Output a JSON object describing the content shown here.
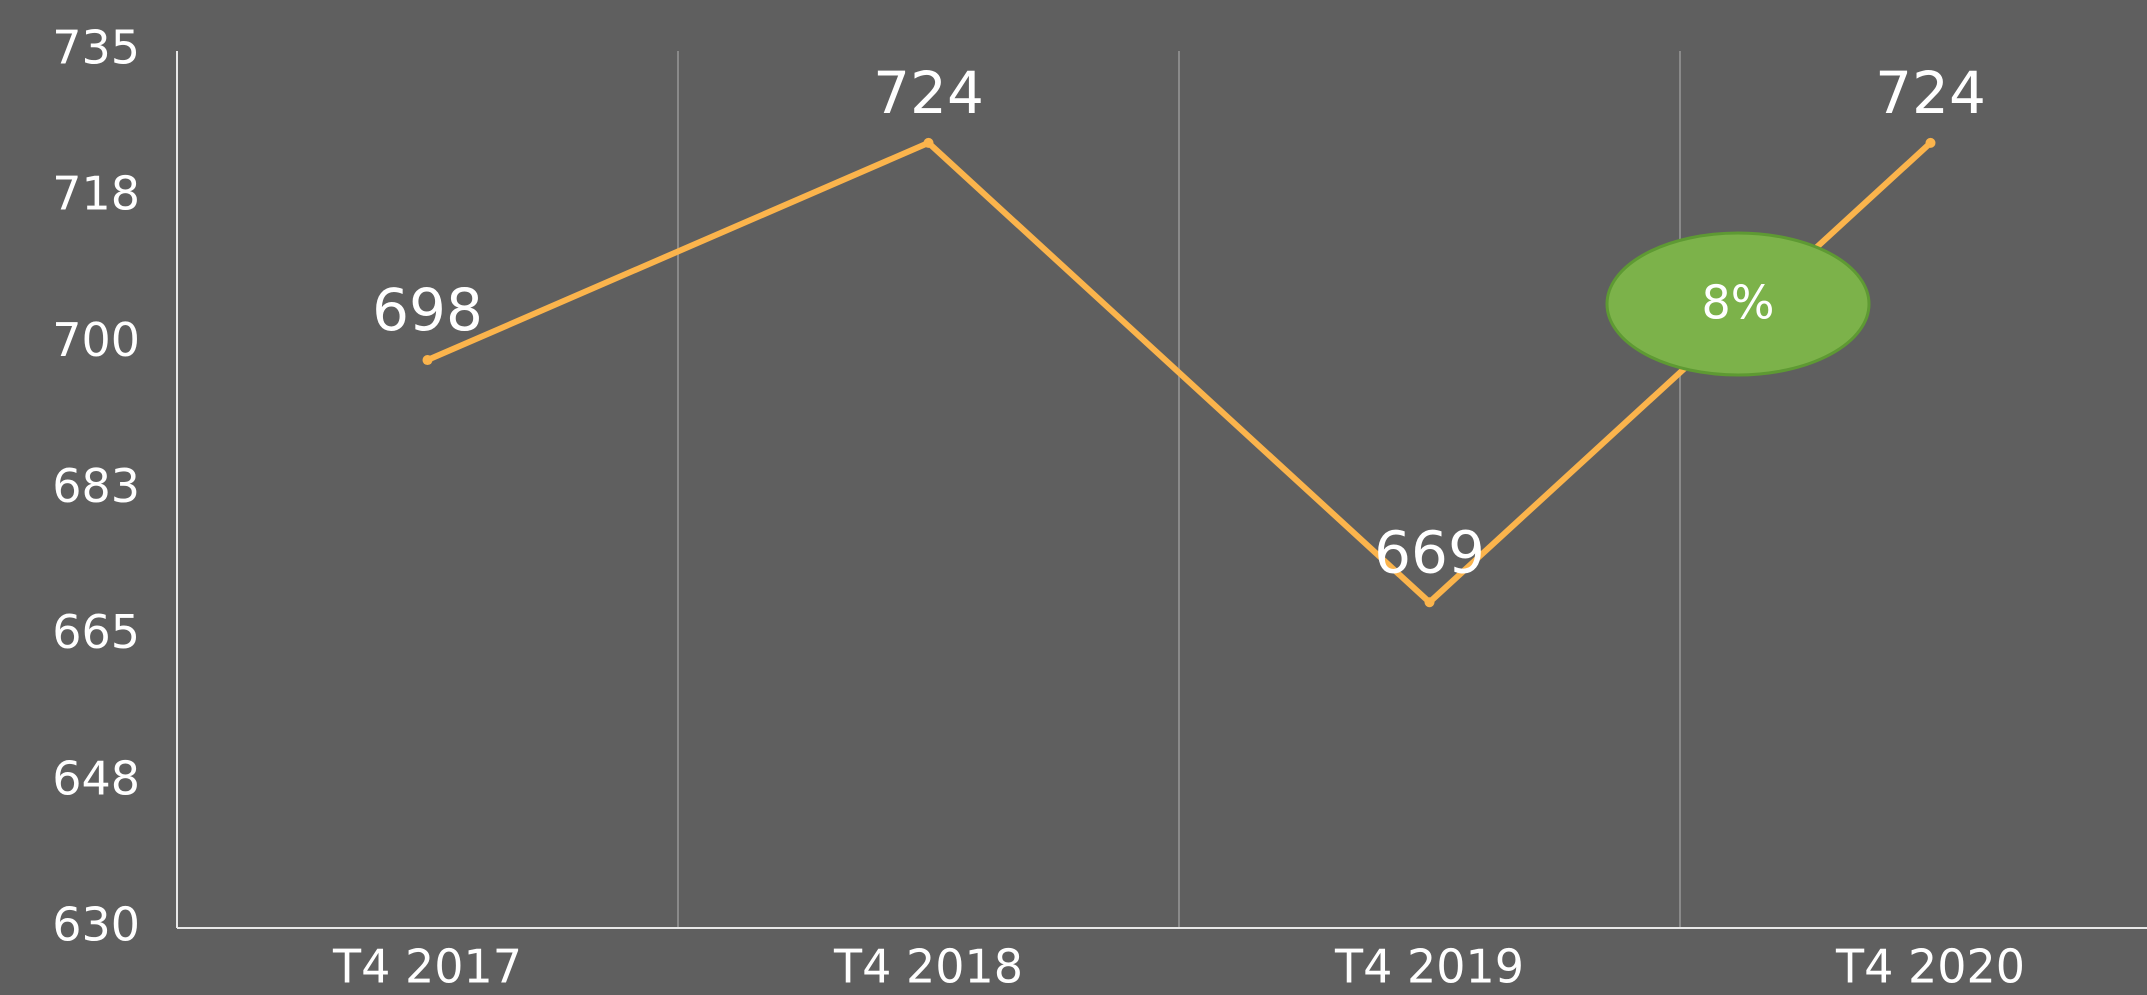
{
  "chart_data": {
    "type": "line",
    "categories": [
      "T4 2017",
      "T4 2018",
      "T4 2019",
      "T4 2020"
    ],
    "series": [
      {
        "name": null,
        "color": "#fbb44c",
        "values": [
          698,
          724,
          669,
          724
        ]
      }
    ],
    "ylim": [
      630,
      735
    ],
    "yticks": [
      630,
      {
        "value": 647.5,
        "label": "648"
      },
      665,
      {
        "value": 682.5,
        "label": "683"
      },
      700,
      {
        "value": 717.5,
        "label": "718"
      },
      735
    ],
    "grid": true,
    "annotation": {
      "text": "8%",
      "color": "#7cb24a"
    }
  }
}
